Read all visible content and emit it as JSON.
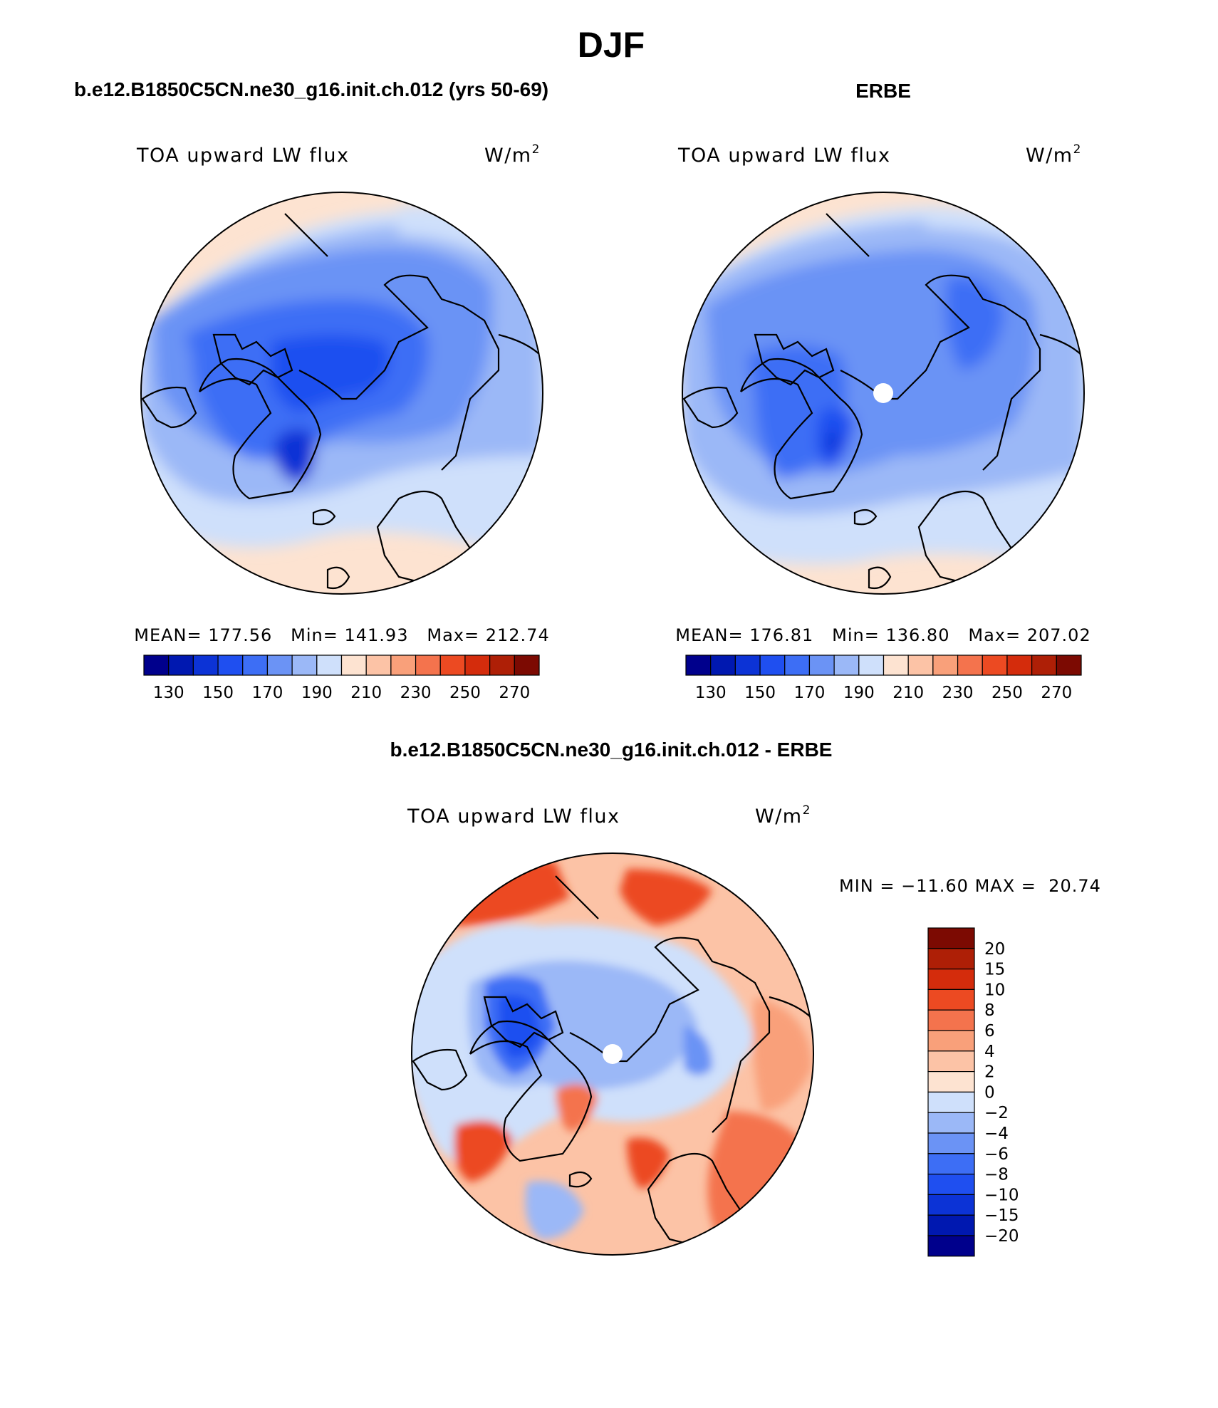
{
  "page": {
    "title": "DJF"
  },
  "panels": {
    "model": {
      "header": "b.e12.B1850C5CN.ne30_g16.init.ch.012 (yrs 50-69)",
      "variable": "TOA upward LW flux",
      "units_base": "W/m",
      "units_exp": "2",
      "stats": {
        "mean_label": "MEAN=",
        "mean": "177.56",
        "min_label": "Min=",
        "min": "141.93",
        "max_label": "Max=",
        "max": "212.74"
      }
    },
    "obs": {
      "header": "ERBE",
      "variable": "TOA upward LW flux",
      "units_base": "W/m",
      "units_exp": "2",
      "stats": {
        "mean_label": "MEAN=",
        "mean": "176.81",
        "min_label": "Min=",
        "min": "136.80",
        "max_label": "Max=",
        "max": "207.02"
      }
    },
    "diff": {
      "header": "b.e12.B1850C5CN.ne30_g16.init.ch.012 - ERBE",
      "variable": "TOA upward LW flux",
      "units_base": "W/m",
      "units_exp": "2",
      "minmax": {
        "min_label": "MIN =",
        "min": "−11.60",
        "max_label": "MAX =",
        "max": "20.74"
      }
    }
  },
  "colorbar_abs": {
    "colors": [
      "#00008c",
      "#0018b0",
      "#0c33d6",
      "#1f4ff0",
      "#3d6ef5",
      "#6b93f5",
      "#9bb8f7",
      "#cfe0fb",
      "#fde3d1",
      "#fcc3a6",
      "#f9a07a",
      "#f4734d",
      "#ec4a22",
      "#d42c0c",
      "#ae1f06",
      "#7c0a02"
    ],
    "labels": [
      "130",
      "150",
      "170",
      "190",
      "210",
      "230",
      "250",
      "270"
    ]
  },
  "colorbar_diff": {
    "colors": [
      "#7c0a02",
      "#ae1f06",
      "#d42c0c",
      "#ec4a22",
      "#f4734d",
      "#f9a07a",
      "#fcc3a6",
      "#fde3d1",
      "#cfe0fb",
      "#9bb8f7",
      "#6b93f5",
      "#3d6ef5",
      "#1f4ff0",
      "#0c33d6",
      "#0018b0",
      "#00008c"
    ],
    "labels": [
      "20",
      "15",
      "10",
      "8",
      "6",
      "4",
      "2",
      "0",
      "−2",
      "−4",
      "−6",
      "−8",
      "−10",
      "−15",
      "−20"
    ]
  }
}
